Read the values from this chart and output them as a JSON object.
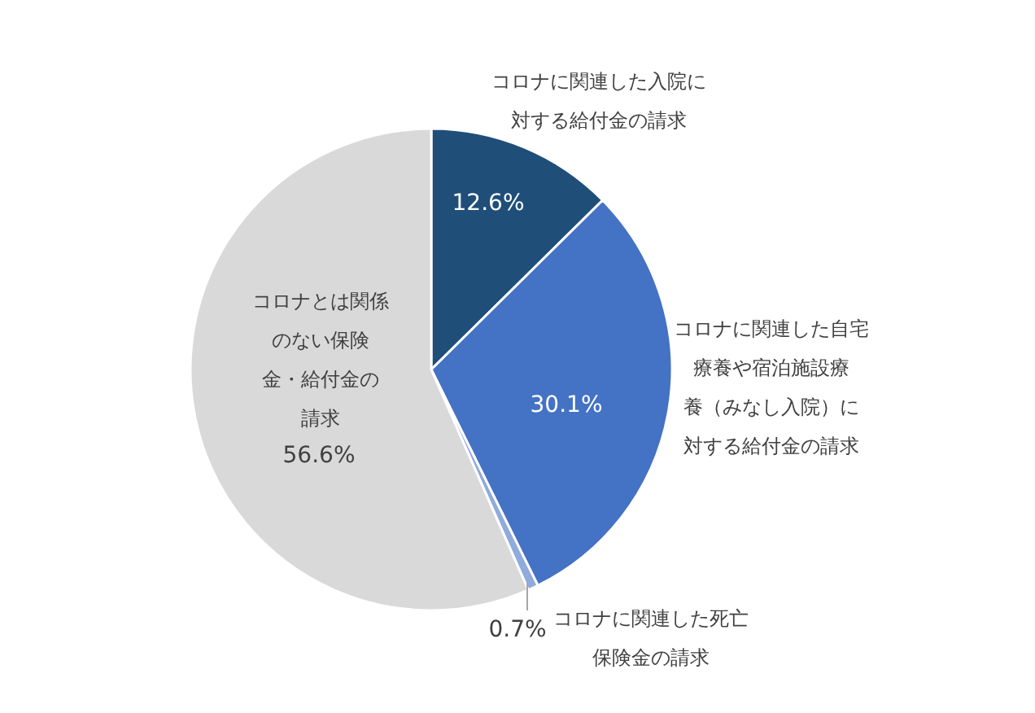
{
  "chart_data": {
    "type": "pie",
    "categories": [
      "コロナに関連した入院に対する給付金の請求",
      "コロナに関連した自宅療養や宿泊施設療養（みなし入院）に対する給付金の請求",
      "コロナに関連した死亡保険金の請求",
      "コロナとは関係のない保険金・給付金の請求"
    ],
    "values": [
      12.6,
      30.1,
      0.7,
      56.6
    ],
    "value_labels": [
      "12.6%",
      "30.1%",
      "0.7%",
      "56.6%"
    ],
    "colors": [
      "#1f4e79",
      "#4472c4",
      "#8faadc",
      "#d9d9d9"
    ]
  }
}
